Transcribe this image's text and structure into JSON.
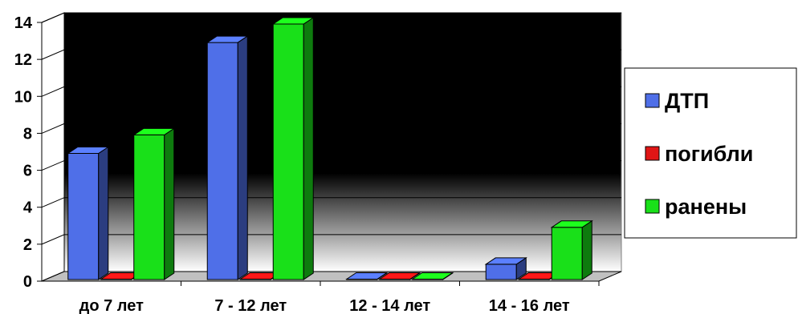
{
  "chart_data": {
    "type": "bar",
    "categories": [
      "до 7 лет",
      "7 - 12 лет",
      "12 - 14 лет",
      "14 - 16 лет"
    ],
    "series": [
      {
        "name": "ДТП",
        "values": [
          7,
          13,
          0,
          1
        ],
        "color": "#4f6fe8"
      },
      {
        "name": "погибли",
        "values": [
          0,
          0,
          0,
          0
        ],
        "color": "#e01515"
      },
      {
        "name": "ранены",
        "values": [
          8,
          14,
          0,
          3
        ],
        "color": "#19e019"
      }
    ],
    "ylim": [
      0,
      14
    ],
    "yticks": [
      0,
      2,
      4,
      6,
      8,
      10,
      12,
      14
    ],
    "legend": "right",
    "grid": true,
    "title": "",
    "xlabel": "",
    "ylabel": ""
  }
}
